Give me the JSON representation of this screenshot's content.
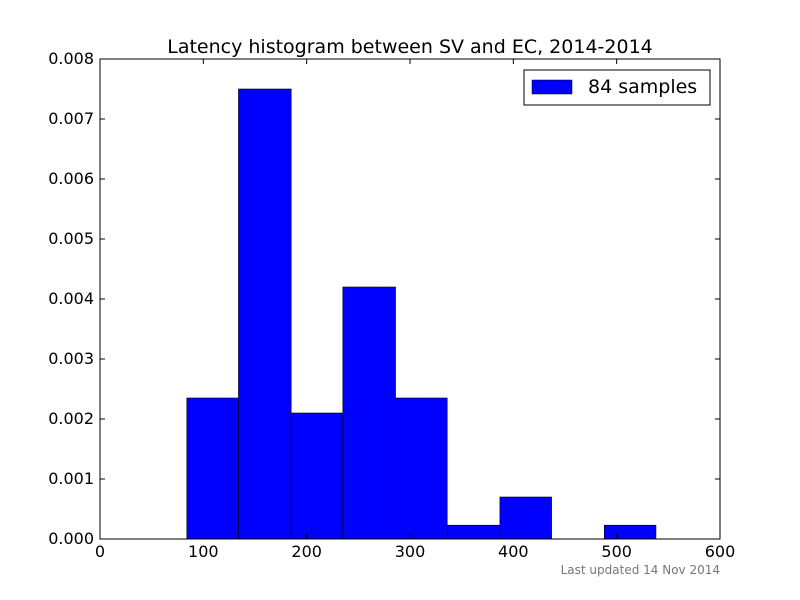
{
  "chart_data": {
    "type": "bar",
    "title": "Latency histogram between SV and EC, 2014-2014",
    "xlabel": "",
    "ylabel": "",
    "xlim": [
      0,
      600
    ],
    "ylim": [
      0,
      0.008
    ],
    "xticks": [
      "0",
      "100",
      "200",
      "300",
      "400",
      "500",
      "600"
    ],
    "yticks": [
      "0.000",
      "0.001",
      "0.002",
      "0.003",
      "0.004",
      "0.005",
      "0.006",
      "0.007",
      "0.008"
    ],
    "bins": [
      {
        "x0": 84,
        "x1": 134,
        "value": 0.00235
      },
      {
        "x0": 134,
        "x1": 185,
        "value": 0.0075
      },
      {
        "x0": 185,
        "x1": 235,
        "value": 0.0021
      },
      {
        "x0": 235,
        "x1": 286,
        "value": 0.0042
      },
      {
        "x0": 286,
        "x1": 336,
        "value": 0.00235
      },
      {
        "x0": 336,
        "x1": 387,
        "value": 0.00023
      },
      {
        "x0": 387,
        "x1": 437,
        "value": 0.0007
      },
      {
        "x0": 437,
        "x1": 488,
        "value": 0
      },
      {
        "x0": 488,
        "x1": 538,
        "value": 0.00023
      }
    ],
    "bar_color": "#0000ff",
    "edge_color": "#000000",
    "legend": {
      "label": "84 samples",
      "placement": "top-right"
    },
    "grid": false
  },
  "footer": {
    "note": "Last updated 14 Nov 2014"
  }
}
